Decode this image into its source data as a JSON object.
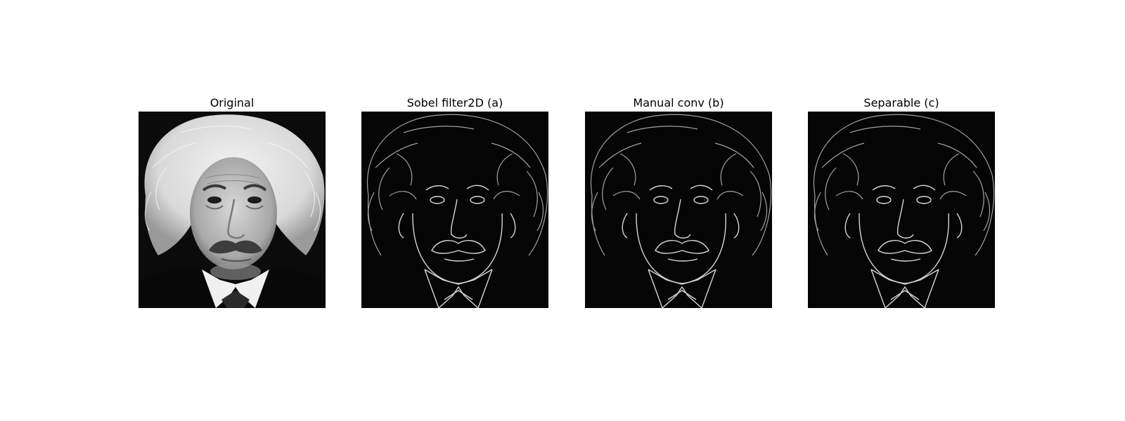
{
  "figure": {
    "panels": [
      {
        "title": "Original",
        "image_kind": "grayscale-portrait"
      },
      {
        "title": "Sobel filter2D (a)",
        "image_kind": "edge-map"
      },
      {
        "title": "Manual conv (b)",
        "image_kind": "edge-map"
      },
      {
        "title": "Separable (c)",
        "image_kind": "edge-map"
      }
    ]
  },
  "colors": {
    "background": "#ffffff",
    "edge_background": "#050505",
    "edge_line": "#bdbdbd",
    "portrait_hair": "#e6e6e6",
    "portrait_skin": "#bfbfbf",
    "portrait_dark": "#101010"
  }
}
